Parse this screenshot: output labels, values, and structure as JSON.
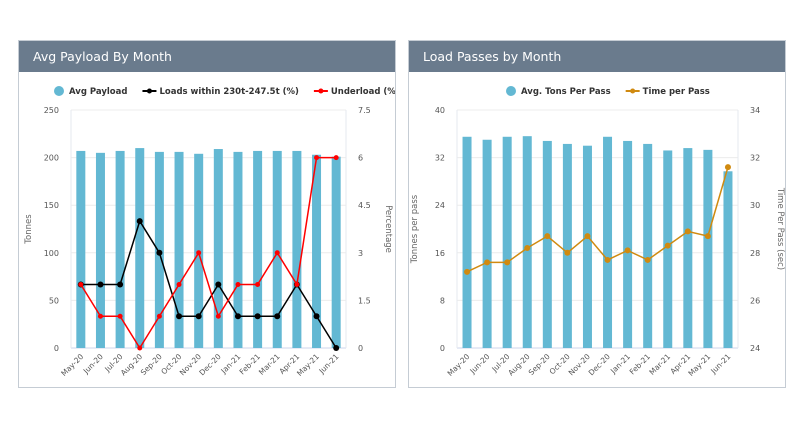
{
  "chart_data": [
    {
      "type": "bar+line",
      "title": "Avg Payload By Month",
      "categories": [
        "May-20",
        "Jun-20",
        "Jul-20",
        "Aug-20",
        "Sep-20",
        "Oct-20",
        "Nov-20",
        "Dec-20",
        "Jan-21",
        "Feb-21",
        "Mar-21",
        "Apr-21",
        "May-21",
        "Jun-21"
      ],
      "ylabel": "Tonnes",
      "y2label": "Percentage",
      "ylim": [
        0,
        250
      ],
      "yticks": [
        "0",
        "50",
        "100",
        "150",
        "200",
        "250"
      ],
      "y2lim": [
        0,
        7.5
      ],
      "y2ticks": [
        "0",
        "1.5",
        "3",
        "4.5",
        "6",
        "7.5"
      ],
      "legend": "top",
      "grid": true,
      "series": [
        {
          "name": "Avg Payload",
          "kind": "bar",
          "axis": "left",
          "color": "#63b8d3",
          "values": [
            207,
            205,
            207,
            210,
            206,
            206,
            204,
            209,
            206,
            207,
            207,
            207,
            203,
            201
          ]
        },
        {
          "name": "Loads within 230t-247.5t (%)",
          "kind": "line",
          "axis": "right",
          "color": "#000000",
          "values": [
            2,
            2,
            2,
            4,
            3,
            1,
            1,
            2,
            1,
            1,
            1,
            2,
            1,
            0
          ]
        },
        {
          "name": "Underload (%)",
          "kind": "line",
          "axis": "right",
          "color": "#ff0000",
          "values": [
            2,
            1,
            1,
            0,
            1,
            2,
            3,
            1,
            2,
            2,
            3,
            2,
            6,
            6
          ]
        }
      ]
    },
    {
      "type": "bar+line",
      "title": "Load Passes by Month",
      "categories": [
        "May-20",
        "Jun-20",
        "Jul-20",
        "Aug-20",
        "Sep-20",
        "Oct-20",
        "Nov-20",
        "Dec-20",
        "Jan-21",
        "Feb-21",
        "Mar-21",
        "Apr-21",
        "May-21",
        "Jun-21"
      ],
      "ylabel": "Tonnes per pass",
      "y2label": "Time Per Pass (sec)",
      "ylim": [
        0,
        40
      ],
      "yticks": [
        "0",
        "8",
        "16",
        "24",
        "32",
        "40"
      ],
      "y2lim": [
        24,
        34
      ],
      "y2ticks": [
        "24",
        "26",
        "28",
        "30",
        "32",
        "34"
      ],
      "legend": "top",
      "grid": true,
      "series": [
        {
          "name": "Avg. Tons Per Pass",
          "kind": "bar",
          "axis": "left",
          "color": "#63b8d3",
          "values": [
            35.5,
            35,
            35.5,
            35.6,
            34.8,
            34.3,
            34,
            35.5,
            34.8,
            34.3,
            33.2,
            33.6,
            33.3,
            29.7
          ]
        },
        {
          "name": "Time per Pass",
          "kind": "line",
          "axis": "right",
          "color": "#d08a10",
          "values": [
            27.2,
            27.6,
            27.6,
            28.2,
            28.7,
            28,
            28.7,
            27.7,
            28.1,
            27.7,
            28.3,
            28.9,
            28.7,
            31.6
          ]
        }
      ]
    }
  ]
}
